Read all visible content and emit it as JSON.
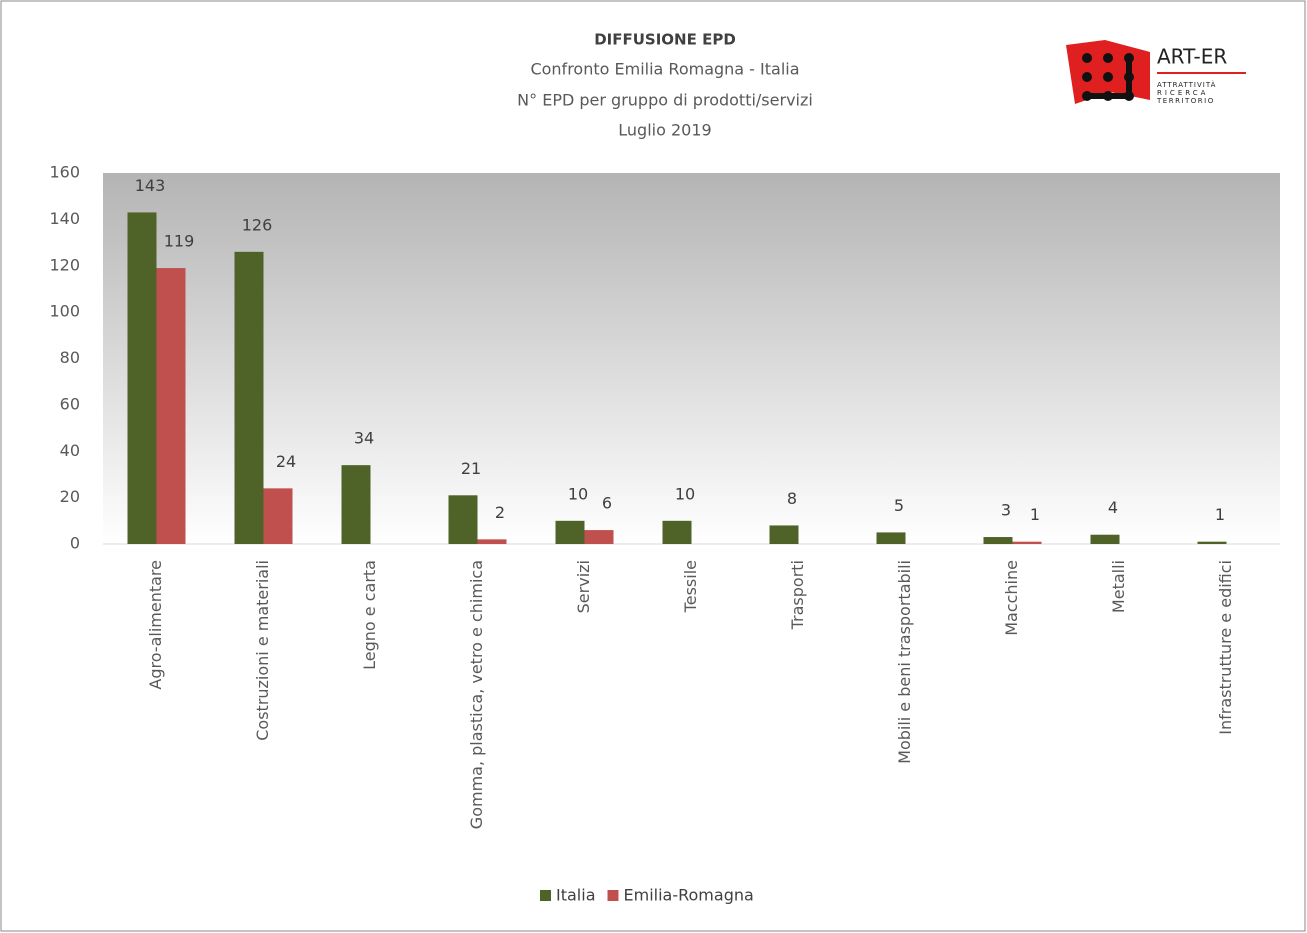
{
  "chart_data": {
    "type": "bar",
    "title": "DIFFUSIONE EPD",
    "subtitle": [
      "Confronto Emilia Romagna - Italia",
      "N° EPD per gruppo di prodotti/servizi",
      "Luglio 2019"
    ],
    "logo": {
      "name": "ART-ER",
      "tagline": [
        "ATTRATTIVITÀ",
        "RICERCA",
        "TERRITORIO"
      ]
    },
    "categories": [
      "Agro-alimentare",
      "Costruzioni e materiali",
      "Legno e carta",
      "Gomma, plastica, vetro e chimica",
      "Servizi",
      "Tessile",
      "Trasporti",
      "Mobili e beni trasportabili",
      "Macchine",
      "Metalli",
      "Infrastrutture e edifici"
    ],
    "series": [
      {
        "name": "Italia",
        "color": "#4f6228",
        "values": [
          143,
          126,
          34,
          21,
          10,
          10,
          8,
          5,
          3,
          4,
          1
        ]
      },
      {
        "name": "Emilia-Romagna",
        "color": "#c0504d",
        "values": [
          119,
          24,
          null,
          2,
          6,
          null,
          null,
          null,
          1,
          null,
          null
        ]
      }
    ],
    "ylim": [
      0,
      160
    ],
    "yticks": [
      0,
      20,
      40,
      60,
      80,
      100,
      120,
      140,
      160
    ],
    "grid": false,
    "legend": "bottom"
  }
}
